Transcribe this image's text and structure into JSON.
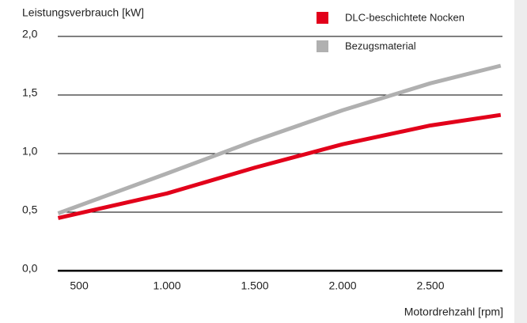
{
  "chart_data": {
    "type": "line",
    "y_label": "Leistungsverbrauch [kW]",
    "x_label": "Motordrehzahl [rpm]",
    "x": [
      380,
      1000,
      1500,
      2000,
      2500,
      2900
    ],
    "series": [
      {
        "name": "DLC-beschichtete Nocken",
        "color": "#e2001a",
        "values": [
          0.45,
          0.66,
          0.88,
          1.08,
          1.24,
          1.33
        ]
      },
      {
        "name": "Bezugsmaterial",
        "color": "#b0b0b0",
        "values": [
          0.49,
          0.83,
          1.11,
          1.37,
          1.6,
          1.75
        ]
      }
    ],
    "xlim": [
      378,
      2910
    ],
    "ylim": [
      0,
      2
    ],
    "xticks": [
      {
        "value": 500,
        "label": "500"
      },
      {
        "value": 1000,
        "label": "1.000"
      },
      {
        "value": 1500,
        "label": "1.500"
      },
      {
        "value": 2000,
        "label": "2.000"
      },
      {
        "value": 2500,
        "label": "2.500"
      }
    ],
    "yticks": [
      {
        "value": 0,
        "label": "0,0"
      },
      {
        "value": 0.5,
        "label": "0,5"
      },
      {
        "value": 1,
        "label": "1,0"
      },
      {
        "value": 1.5,
        "label": "1,5"
      },
      {
        "value": 2,
        "label": "2,0"
      }
    ],
    "grid": true,
    "legend": "top-right"
  }
}
